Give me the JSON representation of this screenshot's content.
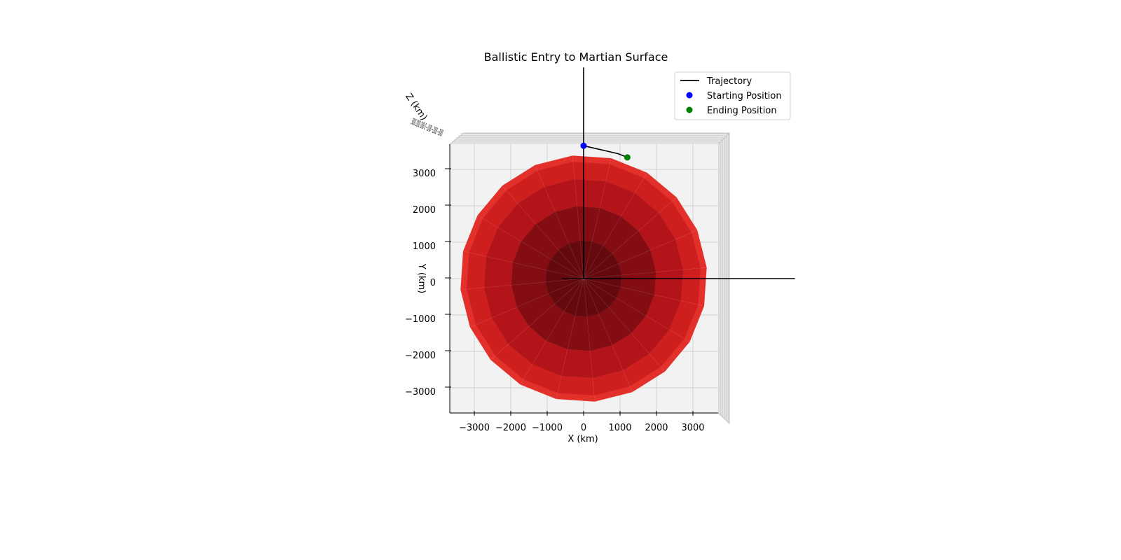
{
  "chart_data": {
    "type": "scatter",
    "projection": "3d",
    "view": "top-down",
    "title": "Ballistic Entry to Martian Surface",
    "xlabel": "X (km)",
    "ylabel": "Y (km)",
    "zlabel": "Z (km)",
    "xlim": [
      -3600,
      3700
    ],
    "ylim": [
      -3600,
      3700
    ],
    "xticks": [
      -3000,
      -2000,
      -1000,
      0,
      1000,
      2000,
      3000
    ],
    "yticks": [
      -3000,
      -2000,
      -1000,
      0,
      1000,
      2000,
      3000
    ],
    "xtick_labels": [
      "−3000",
      "−2000",
      "−1000",
      "0",
      "1000",
      "2000",
      "3000"
    ],
    "ytick_labels": [
      "−3000",
      "−2000",
      "−1000",
      "0",
      "1000",
      "2000",
      "3000"
    ],
    "zticks_text": "3000 2000 1000 0 −1000 −2000 −3000",
    "grid": true,
    "legend_position": "top-right",
    "legend": [
      {
        "label": "Trajectory",
        "kind": "line",
        "color": "#000000"
      },
      {
        "label": "Starting Position",
        "kind": "marker",
        "color": "#0000ff"
      },
      {
        "label": "Ending Position",
        "kind": "marker",
        "color": "#008000"
      }
    ],
    "planet": {
      "name": "Mars surface",
      "radius_km": 3390,
      "color": "#e3302a"
    },
    "trajectory": {
      "color": "#000000",
      "x": [
        0,
        300,
        650,
        950,
        1200
      ],
      "y": [
        3650,
        3580,
        3500,
        3430,
        3330
      ]
    },
    "start": {
      "x": 0,
      "y": 3650,
      "color": "#0000ff"
    },
    "end": {
      "x": 1200,
      "y": 3330,
      "color": "#008000"
    },
    "axes_lines": {
      "color": "#000000",
      "x_max": 5800,
      "y_max": 5800
    }
  }
}
